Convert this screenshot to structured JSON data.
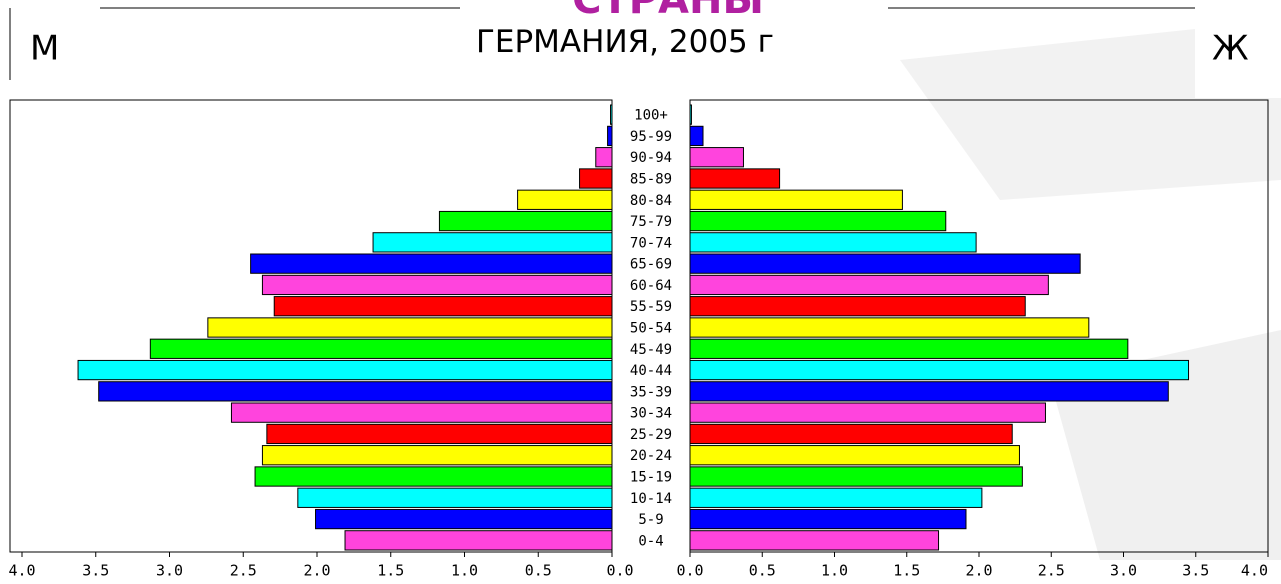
{
  "chart_data": {
    "type": "pyramid",
    "banner": "СТРАНЫ",
    "title": "ГЕРМАНИЯ, 2005 г",
    "categories": [
      "0-4",
      "5-9",
      "10-14",
      "15-19",
      "20-24",
      "25-29",
      "30-34",
      "35-39",
      "40-44",
      "45-49",
      "50-54",
      "55-59",
      "60-64",
      "65-69",
      "70-74",
      "75-79",
      "80-84",
      "85-89",
      "90-94",
      "95-99",
      "100+"
    ],
    "colors": [
      "#ff44dd",
      "#0000ff",
      "#00ffff",
      "#00ff00",
      "#ffff00",
      "#ff0000",
      "#ff44dd",
      "#0000ff",
      "#00ffff",
      "#00ff00",
      "#ffff00",
      "#ff0000",
      "#ff44dd",
      "#0000ff",
      "#00ffff",
      "#00ff00",
      "#ffff00",
      "#ff0000",
      "#ff44dd",
      "#0000ff",
      "#00ffff"
    ],
    "series": [
      {
        "name": "М",
        "values": [
          1.81,
          2.01,
          2.13,
          2.42,
          2.37,
          2.34,
          2.58,
          3.48,
          3.62,
          3.13,
          2.74,
          2.29,
          2.37,
          2.45,
          1.62,
          1.17,
          0.64,
          0.22,
          0.11,
          0.03,
          0.01
        ]
      },
      {
        "name": "Ж",
        "values": [
          1.72,
          1.91,
          2.02,
          2.3,
          2.28,
          2.23,
          2.46,
          3.31,
          3.45,
          3.03,
          2.76,
          2.32,
          2.48,
          2.7,
          1.98,
          1.77,
          1.47,
          0.62,
          0.37,
          0.09,
          0.01
        ]
      }
    ],
    "xlim": [
      0,
      4
    ],
    "xticks": [
      {
        "value": 0,
        "label": "0.0"
      },
      {
        "value": 0.5,
        "label": "0.5"
      },
      {
        "value": 1,
        "label": "1.0"
      },
      {
        "value": 1.5,
        "label": "1.5"
      },
      {
        "value": 2,
        "label": "2.0"
      },
      {
        "value": 2.5,
        "label": "2.5"
      },
      {
        "value": 3,
        "label": "3.0"
      },
      {
        "value": 3.5,
        "label": "3.5"
      },
      {
        "value": 4,
        "label": "4.0"
      }
    ]
  }
}
